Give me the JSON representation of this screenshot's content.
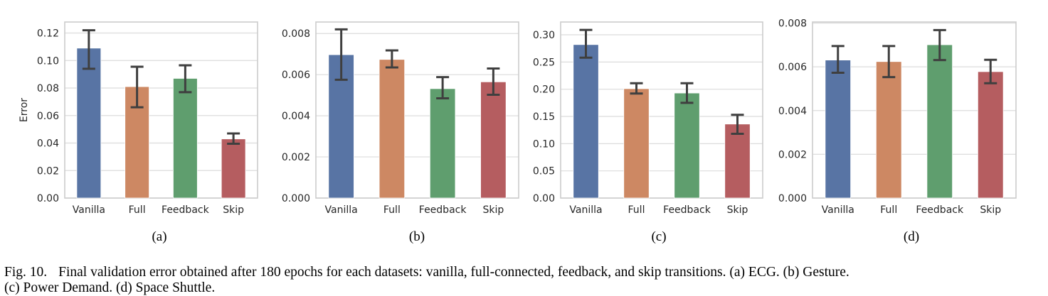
{
  "figure": {
    "caption_label": "Fig. 10.",
    "caption_line1": "Final validation error obtained after 180 epochs for each datasets: vanilla, full-connected, feedback, and skip transitions. (a) ECG. (b) Gesture.",
    "caption_line2": "(c) Power Demand. (d) Space Shuttle."
  },
  "colors": {
    "Vanilla": "#5874a4",
    "Full": "#cd8863",
    "Feedback": "#5f9e6e",
    "Skip": "#b55d60",
    "errorbar": "#3f3f3f",
    "grid": "#dcdcdc",
    "frame": "#cccccc"
  },
  "chart_data": [
    {
      "type": "bar",
      "panel": "(a)",
      "dataset": "ECG",
      "title": "",
      "xlabel": "",
      "ylabel": "Error",
      "categories": [
        "Vanilla",
        "Full",
        "Feedback",
        "Skip"
      ],
      "values": [
        0.109,
        0.081,
        0.087,
        0.043
      ],
      "error_low": [
        0.094,
        0.066,
        0.077,
        0.0395
      ],
      "error_high": [
        0.122,
        0.0955,
        0.0965,
        0.047
      ],
      "ylim": [
        0,
        0.128
      ],
      "yticks": [
        0.0,
        0.02,
        0.04,
        0.06,
        0.08,
        0.1,
        0.12
      ],
      "ytick_labels": [
        "0.00",
        "0.02",
        "0.04",
        "0.06",
        "0.08",
        "0.10",
        "0.12"
      ],
      "grid": true
    },
    {
      "type": "bar",
      "panel": "(b)",
      "dataset": "Gesture",
      "title": "",
      "xlabel": "",
      "ylabel": "",
      "categories": [
        "Vanilla",
        "Full",
        "Feedback",
        "Skip"
      ],
      "values": [
        0.00697,
        0.00674,
        0.00532,
        0.00565
      ],
      "error_low": [
        0.00575,
        0.00635,
        0.00485,
        0.00502
      ],
      "error_high": [
        0.0082,
        0.00718,
        0.00588,
        0.0063
      ],
      "ylim": [
        0,
        0.00856
      ],
      "yticks": [
        0.0,
        0.002,
        0.004,
        0.006,
        0.008
      ],
      "ytick_labels": [
        "0.000",
        "0.002",
        "0.004",
        "0.006",
        "0.008"
      ],
      "grid": true
    },
    {
      "type": "bar",
      "panel": "(c)",
      "dataset": "Power Demand",
      "title": "",
      "xlabel": "",
      "ylabel": "",
      "categories": [
        "Vanilla",
        "Full",
        "Feedback",
        "Skip"
      ],
      "values": [
        0.282,
        0.201,
        0.193,
        0.136
      ],
      "error_low": [
        0.258,
        0.192,
        0.175,
        0.118
      ],
      "error_high": [
        0.309,
        0.211,
        0.211,
        0.153
      ],
      "ylim": [
        0,
        0.3235
      ],
      "yticks": [
        0.0,
        0.05,
        0.1,
        0.15,
        0.2,
        0.25,
        0.3
      ],
      "ytick_labels": [
        "0.00",
        "0.05",
        "0.10",
        "0.15",
        "0.20",
        "0.25",
        "0.30"
      ],
      "grid": true
    },
    {
      "type": "bar",
      "panel": "(d)",
      "dataset": "Space Shuttle",
      "title": "",
      "xlabel": "",
      "ylabel": "",
      "categories": [
        "Vanilla",
        "Full",
        "Feedback",
        "Skip"
      ],
      "values": [
        0.00631,
        0.00624,
        0.00701,
        0.00578
      ],
      "error_low": [
        0.00573,
        0.00553,
        0.00631,
        0.00525
      ],
      "error_high": [
        0.00695,
        0.00695,
        0.00768,
        0.00632
      ],
      "ylim": [
        0,
        0.00805
      ],
      "yticks": [
        0.0,
        0.002,
        0.004,
        0.006,
        0.008
      ],
      "ytick_labels": [
        "0.000",
        "0.002",
        "0.004",
        "0.006",
        "0.008"
      ],
      "grid": true
    }
  ]
}
